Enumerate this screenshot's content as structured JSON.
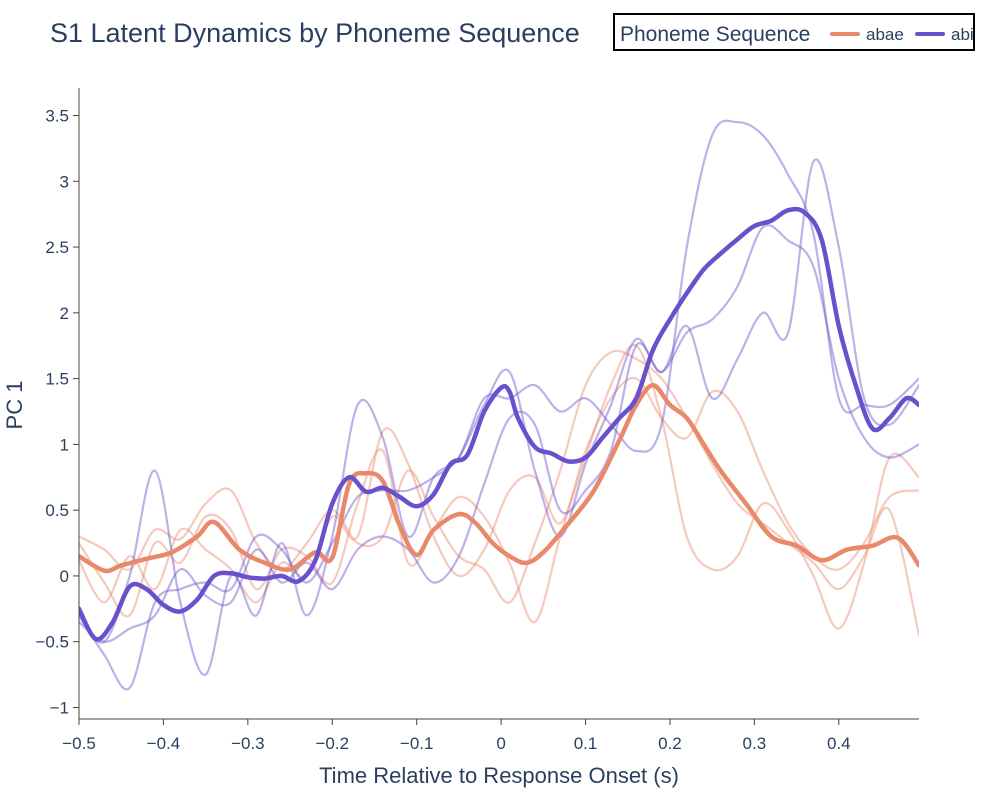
{
  "chart_data": {
    "type": "line",
    "title": "S1 Latent Dynamics by Phoneme Sequence",
    "xlabel": "Time Relative to Response Onset (s)",
    "ylabel": "PC 1",
    "xlim": [
      -0.5,
      0.495
    ],
    "ylim": [
      -1.1,
      3.7
    ],
    "grid": false,
    "legend_placement": "top-right",
    "legend": {
      "title": "Phoneme Sequence",
      "entries": [
        {
          "name": "abae",
          "color": "#e8896a"
        },
        {
          "name": "abi",
          "color": "#6a51cc"
        }
      ]
    },
    "x_ticks": [
      {
        "value": -0.5,
        "label": "−0.5"
      },
      {
        "value": -0.4,
        "label": "−0.4"
      },
      {
        "value": -0.3,
        "label": "−0.3"
      },
      {
        "value": -0.2,
        "label": "−0.2"
      },
      {
        "value": -0.1,
        "label": "−0.1"
      },
      {
        "value": 0,
        "label": "0"
      },
      {
        "value": 0.1,
        "label": "0.1"
      },
      {
        "value": 0.2,
        "label": "0.2"
      },
      {
        "value": 0.3,
        "label": "0.3"
      },
      {
        "value": 0.4,
        "label": "0.4"
      }
    ],
    "y_ticks": [
      {
        "value": 3.5,
        "label": "3.5"
      },
      {
        "value": 3,
        "label": "3"
      },
      {
        "value": 2.5,
        "label": "2.5"
      },
      {
        "value": 2,
        "label": "2"
      },
      {
        "value": 1.5,
        "label": "1.5"
      },
      {
        "value": 1,
        "label": "1"
      },
      {
        "value": 0.5,
        "label": "0.5"
      },
      {
        "value": 0,
        "label": "0"
      },
      {
        "value": -0.5,
        "label": "−0.5"
      },
      {
        "value": -1,
        "label": "−1"
      }
    ],
    "series": [
      {
        "name": "abae",
        "role": "mean",
        "color": "#e8896a",
        "x": [
          -0.5,
          -0.47,
          -0.45,
          -0.42,
          -0.39,
          -0.36,
          -0.34,
          -0.31,
          -0.28,
          -0.25,
          -0.22,
          -0.2,
          -0.18,
          -0.16,
          -0.14,
          -0.12,
          -0.1,
          -0.08,
          -0.05,
          -0.03,
          -0.01,
          0.01,
          0.03,
          0.05,
          0.08,
          0.11,
          0.14,
          0.16,
          0.18,
          0.2,
          0.22,
          0.24,
          0.26,
          0.29,
          0.32,
          0.35,
          0.38,
          0.41,
          0.44,
          0.47,
          0.495
        ],
        "y": [
          0.15,
          0.04,
          0.08,
          0.13,
          0.18,
          0.3,
          0.41,
          0.2,
          0.1,
          0.05,
          0.18,
          0.14,
          0.7,
          0.78,
          0.72,
          0.38,
          0.16,
          0.35,
          0.47,
          0.4,
          0.25,
          0.15,
          0.1,
          0.18,
          0.4,
          0.65,
          1.03,
          1.3,
          1.45,
          1.3,
          1.2,
          1.0,
          0.8,
          0.55,
          0.3,
          0.23,
          0.12,
          0.2,
          0.23,
          0.29,
          0.08
        ]
      },
      {
        "name": "abae",
        "role": "trial",
        "color": "#e8896a",
        "x": [
          -0.5,
          -0.47,
          -0.44,
          -0.41,
          -0.38,
          -0.35,
          -0.32,
          -0.29,
          -0.26,
          -0.23,
          -0.2,
          -0.17,
          -0.14,
          -0.11,
          -0.08,
          -0.05,
          -0.02,
          0.01,
          0.04,
          0.07,
          0.1,
          0.13,
          0.16,
          0.19,
          0.22,
          0.25,
          0.28,
          0.31,
          0.34,
          0.37,
          0.4,
          0.43,
          0.46,
          0.495
        ],
        "y": [
          0.12,
          -0.2,
          0.15,
          -0.1,
          0.35,
          0.2,
          0.05,
          -0.2,
          0.1,
          0.0,
          0.45,
          0.3,
          1.1,
          0.85,
          0.3,
          0.0,
          0.2,
          0.65,
          0.75,
          0.4,
          0.95,
          1.35,
          1.5,
          1.2,
          1.05,
          1.4,
          1.25,
          0.8,
          0.4,
          0.15,
          0.05,
          0.25,
          0.6,
          0.65
        ]
      },
      {
        "name": "abae",
        "role": "trial",
        "color": "#e8896a",
        "x": [
          -0.5,
          -0.47,
          -0.44,
          -0.41,
          -0.38,
          -0.35,
          -0.32,
          -0.29,
          -0.26,
          -0.23,
          -0.2,
          -0.17,
          -0.14,
          -0.11,
          -0.08,
          -0.05,
          -0.02,
          0.01,
          0.04,
          0.07,
          0.1,
          0.13,
          0.16,
          0.19,
          0.22,
          0.25,
          0.28,
          0.31,
          0.34,
          0.37,
          0.4,
          0.43,
          0.46,
          0.495
        ],
        "y": [
          0.3,
          0.2,
          0.05,
          0.35,
          0.28,
          0.55,
          0.65,
          0.25,
          0.05,
          0.25,
          0.5,
          0.25,
          0.3,
          0.8,
          0.45,
          0.15,
          0.05,
          -0.2,
          0.25,
          0.8,
          1.45,
          1.7,
          1.65,
          1.5,
          1.2,
          0.85,
          0.55,
          0.4,
          0.25,
          0.1,
          -0.1,
          0.15,
          0.5,
          -0.45
        ]
      },
      {
        "name": "abae",
        "role": "trial",
        "color": "#e8896a",
        "x": [
          -0.5,
          -0.47,
          -0.44,
          -0.41,
          -0.38,
          -0.35,
          -0.32,
          -0.29,
          -0.26,
          -0.23,
          -0.2,
          -0.17,
          -0.14,
          -0.11,
          -0.08,
          -0.05,
          -0.02,
          0.01,
          0.04,
          0.07,
          0.1,
          0.13,
          0.16,
          0.19,
          0.22,
          0.25,
          0.28,
          0.31,
          0.34,
          0.37,
          0.4,
          0.43,
          0.46,
          0.495
        ],
        "y": [
          0.25,
          -0.05,
          -0.3,
          0.25,
          0.1,
          0.45,
          0.35,
          -0.1,
          0.2,
          0.15,
          -0.05,
          0.55,
          0.95,
          0.1,
          0.35,
          0.6,
          0.45,
          0.1,
          -0.35,
          0.3,
          0.9,
          1.45,
          1.75,
          1.2,
          0.3,
          0.05,
          0.15,
          0.55,
          0.35,
          0.0,
          -0.4,
          0.1,
          0.9,
          0.75
        ]
      },
      {
        "name": "abi",
        "role": "mean",
        "color": "#6a51cc",
        "x": [
          -0.5,
          -0.48,
          -0.46,
          -0.44,
          -0.42,
          -0.4,
          -0.38,
          -0.36,
          -0.34,
          -0.32,
          -0.3,
          -0.28,
          -0.26,
          -0.24,
          -0.22,
          -0.2,
          -0.18,
          -0.16,
          -0.14,
          -0.12,
          -0.1,
          -0.08,
          -0.06,
          -0.04,
          -0.02,
          0.0,
          0.01,
          0.02,
          0.04,
          0.06,
          0.08,
          0.1,
          0.12,
          0.14,
          0.16,
          0.18,
          0.2,
          0.22,
          0.24,
          0.26,
          0.28,
          0.3,
          0.32,
          0.34,
          0.36,
          0.38,
          0.4,
          0.42,
          0.44,
          0.46,
          0.48,
          0.495
        ],
        "y": [
          -0.25,
          -0.48,
          -0.35,
          -0.08,
          -0.1,
          -0.22,
          -0.27,
          -0.18,
          0.0,
          0.02,
          -0.01,
          -0.02,
          0.0,
          -0.04,
          0.12,
          0.55,
          0.75,
          0.64,
          0.67,
          0.6,
          0.53,
          0.62,
          0.85,
          0.92,
          1.25,
          1.43,
          1.4,
          1.2,
          0.98,
          0.93,
          0.87,
          0.9,
          1.05,
          1.2,
          1.35,
          1.72,
          1.95,
          2.15,
          2.33,
          2.45,
          2.56,
          2.66,
          2.7,
          2.78,
          2.76,
          2.55,
          1.9,
          1.45,
          1.12,
          1.2,
          1.35,
          1.3
        ]
      },
      {
        "name": "abi",
        "role": "trial",
        "color": "#6a51cc",
        "x": [
          -0.5,
          -0.47,
          -0.44,
          -0.41,
          -0.38,
          -0.35,
          -0.32,
          -0.29,
          -0.26,
          -0.23,
          -0.2,
          -0.17,
          -0.14,
          -0.11,
          -0.08,
          -0.05,
          -0.02,
          0.01,
          0.04,
          0.07,
          0.1,
          0.13,
          0.16,
          0.19,
          0.22,
          0.25,
          0.28,
          0.31,
          0.34,
          0.37,
          0.4,
          0.43,
          0.46,
          0.495
        ],
        "y": [
          -0.3,
          -0.6,
          -0.85,
          -0.2,
          -0.1,
          -0.05,
          -0.1,
          0.3,
          0.2,
          -0.05,
          0.25,
          0.6,
          0.65,
          0.65,
          0.75,
          0.9,
          1.3,
          1.55,
          0.8,
          0.3,
          0.85,
          1.3,
          1.8,
          1.55,
          1.9,
          1.35,
          1.65,
          2.0,
          1.85,
          3.15,
          2.5,
          1.35,
          1.15,
          1.45
        ]
      },
      {
        "name": "abi",
        "role": "trial",
        "color": "#6a51cc",
        "x": [
          -0.5,
          -0.47,
          -0.44,
          -0.41,
          -0.38,
          -0.35,
          -0.32,
          -0.29,
          -0.26,
          -0.23,
          -0.2,
          -0.17,
          -0.14,
          -0.11,
          -0.08,
          -0.05,
          -0.02,
          0.01,
          0.04,
          0.07,
          0.1,
          0.13,
          0.16,
          0.19,
          0.22,
          0.25,
          0.28,
          0.31,
          0.34,
          0.37,
          0.4,
          0.43,
          0.46,
          0.495
        ],
        "y": [
          -0.3,
          -0.5,
          0.0,
          0.8,
          -0.2,
          -0.75,
          0.0,
          -0.3,
          0.25,
          -0.3,
          0.3,
          1.3,
          1.05,
          0.3,
          0.75,
          0.9,
          1.35,
          1.35,
          1.45,
          1.25,
          1.35,
          1.15,
          0.95,
          1.15,
          2.5,
          3.35,
          3.45,
          3.35,
          3.05,
          2.6,
          1.35,
          1.3,
          1.3,
          1.5
        ]
      },
      {
        "name": "abi",
        "role": "trial",
        "color": "#6a51cc",
        "x": [
          -0.5,
          -0.47,
          -0.44,
          -0.41,
          -0.38,
          -0.35,
          -0.32,
          -0.29,
          -0.26,
          -0.23,
          -0.2,
          -0.17,
          -0.14,
          -0.11,
          -0.08,
          -0.05,
          -0.02,
          0.01,
          0.04,
          0.07,
          0.1,
          0.13,
          0.16,
          0.19,
          0.22,
          0.25,
          0.28,
          0.31,
          0.34,
          0.37,
          0.4,
          0.43,
          0.46,
          0.495
        ],
        "y": [
          -0.35,
          -0.5,
          -0.4,
          -0.3,
          0.05,
          -0.15,
          -0.2,
          0.2,
          -0.05,
          0.1,
          -0.1,
          0.2,
          0.3,
          0.2,
          -0.05,
          0.15,
          0.7,
          1.2,
          1.15,
          0.5,
          0.65,
          0.95,
          1.75,
          1.55,
          1.85,
          1.95,
          2.2,
          2.65,
          2.55,
          2.35,
          1.5,
          1.05,
          0.9,
          1.0
        ]
      }
    ]
  }
}
